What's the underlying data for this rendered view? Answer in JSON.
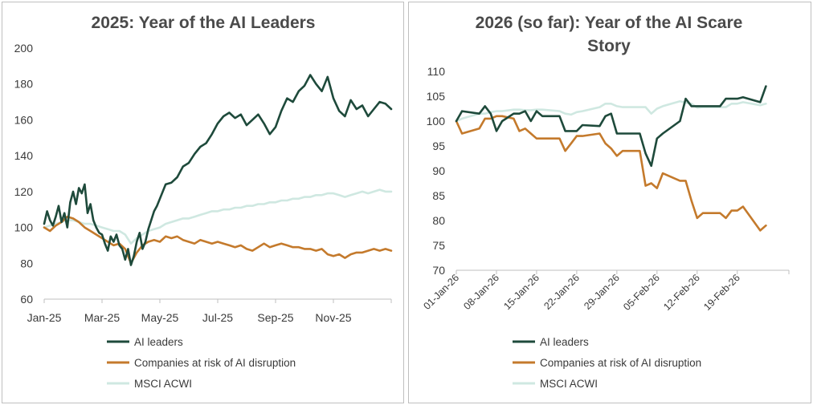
{
  "colors": {
    "ai_leaders": "#1e4a3b",
    "at_risk": "#c47a2c",
    "msci": "#cfe8e1"
  },
  "legend": [
    {
      "key": "ai_leaders",
      "label": "AI leaders"
    },
    {
      "key": "at_risk",
      "label": "Companies at risk of AI disruption"
    },
    {
      "key": "msci",
      "label": "MSCI ACWI"
    }
  ],
  "chart_data": [
    {
      "type": "line",
      "title": "2025: Year of the AI Leaders",
      "xlabel": "",
      "ylabel": "",
      "ylim": [
        60,
        200
      ],
      "yticks": [
        "60",
        "80",
        "100",
        "120",
        "140",
        "160",
        "180",
        "200"
      ],
      "xlim": [
        0,
        12
      ],
      "xtick_labels": [
        "Jan-25",
        "Mar-25",
        "May-25",
        "Jul-25",
        "Sep-25",
        "Nov-25"
      ],
      "xtick_values": [
        0,
        2,
        4,
        6,
        8,
        10
      ],
      "series": [
        {
          "name": "AI leaders",
          "key": "ai_leaders",
          "x": [
            0,
            0.1,
            0.2,
            0.3,
            0.4,
            0.5,
            0.6,
            0.7,
            0.8,
            0.9,
            1.0,
            1.1,
            1.2,
            1.3,
            1.4,
            1.5,
            1.6,
            1.7,
            1.8,
            1.9,
            2.0,
            2.1,
            2.2,
            2.3,
            2.4,
            2.5,
            2.6,
            2.7,
            2.8,
            2.9,
            3.0,
            3.1,
            3.2,
            3.3,
            3.4,
            3.5,
            3.6,
            3.7,
            3.8,
            3.9,
            4.0,
            4.2,
            4.4,
            4.6,
            4.8,
            5.0,
            5.2,
            5.4,
            5.6,
            5.8,
            6.0,
            6.2,
            6.4,
            6.6,
            6.8,
            7.0,
            7.2,
            7.4,
            7.6,
            7.8,
            8.0,
            8.2,
            8.4,
            8.6,
            8.8,
            9.0,
            9.2,
            9.4,
            9.6,
            9.8,
            10.0,
            10.2,
            10.4,
            10.6,
            10.8,
            11.0,
            11.2,
            11.4,
            11.6,
            11.8,
            12.0
          ],
          "values": [
            102,
            109,
            104,
            101,
            106,
            112,
            103,
            108,
            100,
            114,
            120,
            113,
            122,
            119,
            124,
            108,
            113,
            104,
            100,
            97,
            96,
            91,
            87,
            95,
            92,
            96,
            90,
            88,
            82,
            88,
            79,
            84,
            92,
            97,
            88,
            92,
            99,
            104,
            109,
            112,
            116,
            124,
            125,
            128,
            134,
            136,
            141,
            145,
            147,
            152,
            158,
            162,
            164,
            161,
            163,
            157,
            160,
            163,
            158,
            152,
            156,
            165,
            172,
            170,
            176,
            179,
            185,
            180,
            176,
            184,
            172,
            165,
            162,
            171,
            166,
            168,
            162,
            166,
            170,
            169,
            166
          ]
        },
        {
          "name": "Companies at risk of AI disruption",
          "key": "at_risk",
          "x": [
            0,
            0.2,
            0.4,
            0.6,
            0.8,
            1.0,
            1.2,
            1.4,
            1.6,
            1.8,
            2.0,
            2.2,
            2.4,
            2.6,
            2.8,
            3.0,
            3.2,
            3.4,
            3.6,
            3.8,
            4.0,
            4.2,
            4.4,
            4.6,
            4.8,
            5.0,
            5.2,
            5.4,
            5.6,
            5.8,
            6.0,
            6.2,
            6.4,
            6.6,
            6.8,
            7.0,
            7.2,
            7.4,
            7.6,
            7.8,
            8.0,
            8.2,
            8.4,
            8.6,
            8.8,
            9.0,
            9.2,
            9.4,
            9.6,
            9.8,
            10.0,
            10.2,
            10.4,
            10.6,
            10.8,
            11.0,
            11.2,
            11.4,
            11.6,
            11.8,
            12.0
          ],
          "values": [
            100,
            98,
            101,
            103,
            106,
            105,
            103,
            100,
            98,
            96,
            94,
            92,
            90,
            91,
            88,
            80,
            86,
            90,
            92,
            93,
            92,
            95,
            94,
            95,
            93,
            92,
            91,
            93,
            92,
            91,
            92,
            91,
            90,
            89,
            90,
            88,
            87,
            89,
            91,
            89,
            90,
            91,
            90,
            89,
            89,
            88,
            88,
            87,
            88,
            85,
            84,
            85,
            83,
            85,
            86,
            86,
            87,
            88,
            87,
            88,
            87
          ]
        },
        {
          "name": "MSCI ACWI",
          "key": "msci",
          "x": [
            0,
            0.2,
            0.4,
            0.6,
            0.8,
            1.0,
            1.2,
            1.4,
            1.6,
            1.8,
            2.0,
            2.2,
            2.4,
            2.6,
            2.8,
            3.0,
            3.2,
            3.4,
            3.6,
            3.8,
            4.0,
            4.2,
            4.4,
            4.6,
            4.8,
            5.0,
            5.2,
            5.4,
            5.6,
            5.8,
            6.0,
            6.2,
            6.4,
            6.6,
            6.8,
            7.0,
            7.2,
            7.4,
            7.6,
            7.8,
            8.0,
            8.2,
            8.4,
            8.6,
            8.8,
            9.0,
            9.2,
            9.4,
            9.6,
            9.8,
            10.0,
            10.2,
            10.4,
            10.6,
            10.8,
            11.0,
            11.2,
            11.4,
            11.6,
            11.8,
            12.0
          ],
          "values": [
            100,
            101,
            102,
            103,
            104,
            104,
            103,
            102,
            102,
            101,
            100,
            99,
            98,
            98,
            96,
            91,
            94,
            96,
            98,
            99,
            100,
            102,
            103,
            104,
            105,
            105,
            106,
            107,
            108,
            109,
            109,
            110,
            110,
            111,
            111,
            112,
            112,
            113,
            113,
            114,
            114,
            115,
            115,
            116,
            116,
            117,
            117,
            118,
            118,
            119,
            119,
            118,
            117,
            118,
            119,
            120,
            119,
            120,
            121,
            120,
            120
          ]
        }
      ]
    },
    {
      "type": "line",
      "title": "2026 (so far): Year of the AI Scare Story",
      "title_lines": [
        "2026 (so far): Year of the AI Scare",
        "Story"
      ],
      "xlabel": "",
      "ylabel": "",
      "ylim": [
        70,
        110
      ],
      "yticks": [
        "70",
        "75",
        "80",
        "85",
        "90",
        "95",
        "100",
        "105",
        "110"
      ],
      "xlim": [
        0,
        58
      ],
      "xtick_labels": [
        "01-Jan-26",
        "08-Jan-26",
        "15-Jan-26",
        "22-Jan-26",
        "29-Jan-26",
        "05-Feb-26",
        "12-Feb-26",
        "19-Feb-26"
      ],
      "xtick_values": [
        0,
        7,
        14,
        21,
        28,
        35,
        42,
        49
      ],
      "series": [
        {
          "name": "AI leaders",
          "key": "ai_leaders",
          "x": [
            0,
            1,
            4,
            5,
            6,
            7,
            8,
            10,
            11,
            12,
            13,
            14,
            15,
            18,
            19,
            20,
            21,
            22,
            25,
            26,
            27,
            28,
            29,
            32,
            33,
            34,
            35,
            36,
            39,
            40,
            41,
            42,
            43,
            46,
            47,
            48,
            49,
            50,
            53,
            54
          ],
          "values": [
            100,
            102,
            101.5,
            103,
            101.5,
            98,
            100,
            101.5,
            101.5,
            102,
            100,
            102,
            101,
            101,
            98,
            98,
            98,
            99.2,
            99,
            101,
            101.5,
            97.5,
            97.5,
            97.5,
            93.5,
            91,
            96.5,
            97.5,
            100,
            104.5,
            103,
            103,
            103,
            103,
            104.5,
            104.5,
            104.5,
            104.8,
            103.8,
            107
          ]
        },
        {
          "name": "Companies at risk of AI disruption",
          "key": "at_risk",
          "x": [
            0,
            1,
            4,
            5,
            6,
            7,
            8,
            10,
            11,
            12,
            13,
            14,
            15,
            18,
            19,
            20,
            21,
            22,
            25,
            26,
            27,
            28,
            29,
            32,
            33,
            34,
            35,
            36,
            39,
            40,
            41,
            42,
            43,
            46,
            47,
            48,
            49,
            50,
            53,
            54
          ],
          "values": [
            100,
            97.5,
            98.5,
            100.5,
            100.5,
            101,
            101,
            100.5,
            98,
            98.5,
            97.5,
            96.5,
            96.5,
            96.5,
            94,
            95.5,
            97,
            97,
            97.5,
            95.5,
            94.5,
            93,
            94,
            94,
            87,
            87.5,
            86.5,
            89.5,
            88,
            88,
            84,
            80.5,
            81.5,
            81.5,
            80.5,
            82,
            82,
            82.8,
            78,
            79
          ]
        },
        {
          "name": "MSCI ACWI",
          "key": "msci",
          "x": [
            0,
            1,
            4,
            5,
            6,
            7,
            8,
            10,
            11,
            12,
            13,
            14,
            15,
            18,
            19,
            20,
            21,
            22,
            25,
            26,
            27,
            28,
            29,
            32,
            33,
            34,
            35,
            36,
            39,
            40,
            41,
            42,
            43,
            46,
            47,
            48,
            49,
            50,
            53,
            54
          ],
          "values": [
            100,
            100.5,
            101.5,
            101.5,
            101.8,
            102,
            102,
            102.3,
            102.3,
            102.2,
            102.2,
            102.3,
            102.3,
            102,
            101.5,
            101.3,
            101.8,
            102,
            102.8,
            103.5,
            103.5,
            103,
            102.8,
            102.8,
            102.8,
            101.5,
            102.5,
            103,
            104,
            103.7,
            103.5,
            102.7,
            102.8,
            102.8,
            102.8,
            103.5,
            103.5,
            103.8,
            103.2,
            103.5
          ]
        }
      ]
    }
  ]
}
